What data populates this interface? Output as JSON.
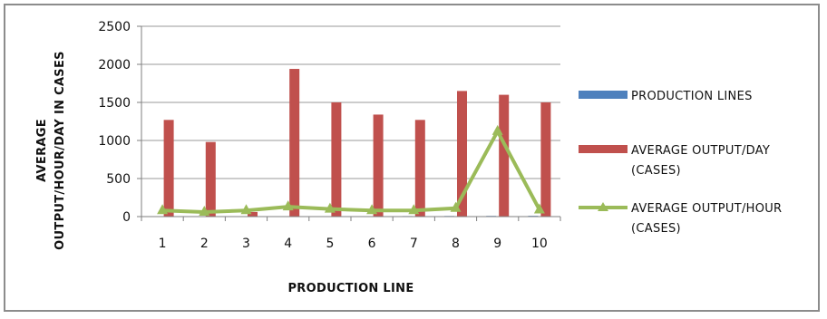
{
  "chart_data": {
    "type": "bar",
    "title": "",
    "xlabel": "PRODUCTION LINE",
    "ylabel_lines": [
      "AVERAGE",
      "OUTPUT/HOUR/DAY IN CASES"
    ],
    "categories": [
      "1",
      "2",
      "3",
      "4",
      "5",
      "6",
      "7",
      "8",
      "9",
      "10"
    ],
    "ylim": [
      0,
      2500
    ],
    "yticks": [
      0,
      500,
      1000,
      1500,
      2000,
      2500
    ],
    "grid": true,
    "legend_position": "right",
    "series": [
      {
        "name": "PRODUCTION LINES",
        "type": "bar",
        "color": "#4f81bd",
        "values": [
          1,
          2,
          3,
          4,
          5,
          6,
          7,
          8,
          9,
          10
        ]
      },
      {
        "name": "AVERAGE OUTPUT/DAY (CASES)",
        "name_lines": [
          "AVERAGE OUTPUT/DAY",
          "(CASES)"
        ],
        "type": "bar",
        "color": "#c0504d",
        "values": [
          1270,
          980,
          60,
          1940,
          1500,
          1340,
          1270,
          1650,
          1600,
          1500
        ]
      },
      {
        "name": "AVERAGE OUTPUT/HOUR (CASES)",
        "name_lines": [
          "AVERAGE OUTPUT/HOUR",
          "(CASES)"
        ],
        "type": "line",
        "color": "#9bbb59",
        "values": [
          80,
          60,
          80,
          130,
          100,
          80,
          80,
          110,
          1120,
          90
        ]
      }
    ]
  }
}
